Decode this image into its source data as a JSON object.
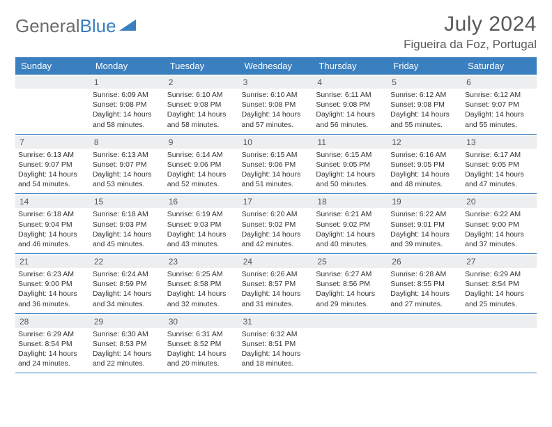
{
  "brand": {
    "name1": "General",
    "name2": "Blue"
  },
  "title": "July 2024",
  "location": "Figueira da Foz, Portugal",
  "day_headers": [
    "Sunday",
    "Monday",
    "Tuesday",
    "Wednesday",
    "Thursday",
    "Friday",
    "Saturday"
  ],
  "colors": {
    "header_bg": "#3a7fbf",
    "header_text": "#ffffff",
    "daynum_bg": "#eceeef",
    "border": "#3a7fbf",
    "text": "#333333",
    "title_color": "#595959"
  },
  "weeks": [
    [
      null,
      {
        "n": "1",
        "sunrise": "Sunrise: 6:09 AM",
        "sunset": "Sunset: 9:08 PM",
        "daylight": "Daylight: 14 hours and 58 minutes."
      },
      {
        "n": "2",
        "sunrise": "Sunrise: 6:10 AM",
        "sunset": "Sunset: 9:08 PM",
        "daylight": "Daylight: 14 hours and 58 minutes."
      },
      {
        "n": "3",
        "sunrise": "Sunrise: 6:10 AM",
        "sunset": "Sunset: 9:08 PM",
        "daylight": "Daylight: 14 hours and 57 minutes."
      },
      {
        "n": "4",
        "sunrise": "Sunrise: 6:11 AM",
        "sunset": "Sunset: 9:08 PM",
        "daylight": "Daylight: 14 hours and 56 minutes."
      },
      {
        "n": "5",
        "sunrise": "Sunrise: 6:12 AM",
        "sunset": "Sunset: 9:08 PM",
        "daylight": "Daylight: 14 hours and 55 minutes."
      },
      {
        "n": "6",
        "sunrise": "Sunrise: 6:12 AM",
        "sunset": "Sunset: 9:07 PM",
        "daylight": "Daylight: 14 hours and 55 minutes."
      }
    ],
    [
      {
        "n": "7",
        "sunrise": "Sunrise: 6:13 AM",
        "sunset": "Sunset: 9:07 PM",
        "daylight": "Daylight: 14 hours and 54 minutes."
      },
      {
        "n": "8",
        "sunrise": "Sunrise: 6:13 AM",
        "sunset": "Sunset: 9:07 PM",
        "daylight": "Daylight: 14 hours and 53 minutes."
      },
      {
        "n": "9",
        "sunrise": "Sunrise: 6:14 AM",
        "sunset": "Sunset: 9:06 PM",
        "daylight": "Daylight: 14 hours and 52 minutes."
      },
      {
        "n": "10",
        "sunrise": "Sunrise: 6:15 AM",
        "sunset": "Sunset: 9:06 PM",
        "daylight": "Daylight: 14 hours and 51 minutes."
      },
      {
        "n": "11",
        "sunrise": "Sunrise: 6:15 AM",
        "sunset": "Sunset: 9:05 PM",
        "daylight": "Daylight: 14 hours and 50 minutes."
      },
      {
        "n": "12",
        "sunrise": "Sunrise: 6:16 AM",
        "sunset": "Sunset: 9:05 PM",
        "daylight": "Daylight: 14 hours and 48 minutes."
      },
      {
        "n": "13",
        "sunrise": "Sunrise: 6:17 AM",
        "sunset": "Sunset: 9:05 PM",
        "daylight": "Daylight: 14 hours and 47 minutes."
      }
    ],
    [
      {
        "n": "14",
        "sunrise": "Sunrise: 6:18 AM",
        "sunset": "Sunset: 9:04 PM",
        "daylight": "Daylight: 14 hours and 46 minutes."
      },
      {
        "n": "15",
        "sunrise": "Sunrise: 6:18 AM",
        "sunset": "Sunset: 9:03 PM",
        "daylight": "Daylight: 14 hours and 45 minutes."
      },
      {
        "n": "16",
        "sunrise": "Sunrise: 6:19 AM",
        "sunset": "Sunset: 9:03 PM",
        "daylight": "Daylight: 14 hours and 43 minutes."
      },
      {
        "n": "17",
        "sunrise": "Sunrise: 6:20 AM",
        "sunset": "Sunset: 9:02 PM",
        "daylight": "Daylight: 14 hours and 42 minutes."
      },
      {
        "n": "18",
        "sunrise": "Sunrise: 6:21 AM",
        "sunset": "Sunset: 9:02 PM",
        "daylight": "Daylight: 14 hours and 40 minutes."
      },
      {
        "n": "19",
        "sunrise": "Sunrise: 6:22 AM",
        "sunset": "Sunset: 9:01 PM",
        "daylight": "Daylight: 14 hours and 39 minutes."
      },
      {
        "n": "20",
        "sunrise": "Sunrise: 6:22 AM",
        "sunset": "Sunset: 9:00 PM",
        "daylight": "Daylight: 14 hours and 37 minutes."
      }
    ],
    [
      {
        "n": "21",
        "sunrise": "Sunrise: 6:23 AM",
        "sunset": "Sunset: 9:00 PM",
        "daylight": "Daylight: 14 hours and 36 minutes."
      },
      {
        "n": "22",
        "sunrise": "Sunrise: 6:24 AM",
        "sunset": "Sunset: 8:59 PM",
        "daylight": "Daylight: 14 hours and 34 minutes."
      },
      {
        "n": "23",
        "sunrise": "Sunrise: 6:25 AM",
        "sunset": "Sunset: 8:58 PM",
        "daylight": "Daylight: 14 hours and 32 minutes."
      },
      {
        "n": "24",
        "sunrise": "Sunrise: 6:26 AM",
        "sunset": "Sunset: 8:57 PM",
        "daylight": "Daylight: 14 hours and 31 minutes."
      },
      {
        "n": "25",
        "sunrise": "Sunrise: 6:27 AM",
        "sunset": "Sunset: 8:56 PM",
        "daylight": "Daylight: 14 hours and 29 minutes."
      },
      {
        "n": "26",
        "sunrise": "Sunrise: 6:28 AM",
        "sunset": "Sunset: 8:55 PM",
        "daylight": "Daylight: 14 hours and 27 minutes."
      },
      {
        "n": "27",
        "sunrise": "Sunrise: 6:29 AM",
        "sunset": "Sunset: 8:54 PM",
        "daylight": "Daylight: 14 hours and 25 minutes."
      }
    ],
    [
      {
        "n": "28",
        "sunrise": "Sunrise: 6:29 AM",
        "sunset": "Sunset: 8:54 PM",
        "daylight": "Daylight: 14 hours and 24 minutes."
      },
      {
        "n": "29",
        "sunrise": "Sunrise: 6:30 AM",
        "sunset": "Sunset: 8:53 PM",
        "daylight": "Daylight: 14 hours and 22 minutes."
      },
      {
        "n": "30",
        "sunrise": "Sunrise: 6:31 AM",
        "sunset": "Sunset: 8:52 PM",
        "daylight": "Daylight: 14 hours and 20 minutes."
      },
      {
        "n": "31",
        "sunrise": "Sunrise: 6:32 AM",
        "sunset": "Sunset: 8:51 PM",
        "daylight": "Daylight: 14 hours and 18 minutes."
      },
      null,
      null,
      null
    ]
  ]
}
